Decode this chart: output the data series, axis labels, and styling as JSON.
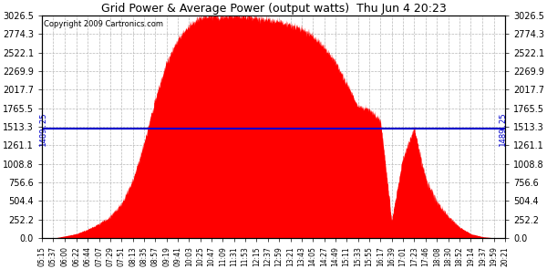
{
  "title": "Grid Power & Average Power (output watts)  Thu Jun 4 20:23",
  "copyright": "Copyright 2009 Cartronics.com",
  "avg_value": 1489.25,
  "y_max": 3026.5,
  "y_min": 0.0,
  "y_ticks": [
    0.0,
    252.2,
    504.4,
    756.6,
    1008.8,
    1261.1,
    1513.3,
    1765.5,
    2017.7,
    2269.9,
    2522.1,
    2774.3,
    3026.5
  ],
  "bg_color": "#ffffff",
  "fill_color": "#ff0000",
  "avg_line_color": "#0000cc",
  "grid_color": "#b0b0b0",
  "x_tick_labels": [
    "05:15",
    "05:37",
    "06:00",
    "06:22",
    "06:44",
    "07:07",
    "07:29",
    "07:51",
    "08:13",
    "08:35",
    "08:57",
    "09:19",
    "09:41",
    "10:03",
    "10:25",
    "10:47",
    "11:09",
    "11:31",
    "11:53",
    "12:15",
    "12:37",
    "12:59",
    "13:21",
    "13:43",
    "14:05",
    "14:27",
    "14:49",
    "15:11",
    "15:33",
    "15:55",
    "16:17",
    "16:39",
    "17:01",
    "17:23",
    "17:46",
    "18:08",
    "18:30",
    "18:52",
    "19:14",
    "19:37",
    "19:59",
    "20:21"
  ],
  "curve_points_t": [
    315,
    337,
    360,
    382,
    404,
    427,
    449,
    471,
    493,
    515,
    537,
    559,
    581,
    603,
    625,
    647,
    669,
    691,
    713,
    735,
    757,
    779,
    801,
    823,
    845,
    867,
    889,
    911,
    933,
    955,
    977,
    999,
    1021,
    1043,
    1066,
    1088,
    1110,
    1132,
    1154,
    1177,
    1199,
    1221
  ],
  "curve_points_v": [
    0,
    0,
    30,
    60,
    120,
    200,
    300,
    480,
    800,
    1300,
    1900,
    2400,
    2700,
    2900,
    3000,
    3020,
    3026,
    3026,
    3020,
    3000,
    2980,
    2950,
    2900,
    2850,
    2750,
    2600,
    2400,
    2100,
    1800,
    1750,
    1600,
    250,
    1100,
    1500,
    800,
    500,
    300,
    150,
    60,
    20,
    5,
    0
  ]
}
